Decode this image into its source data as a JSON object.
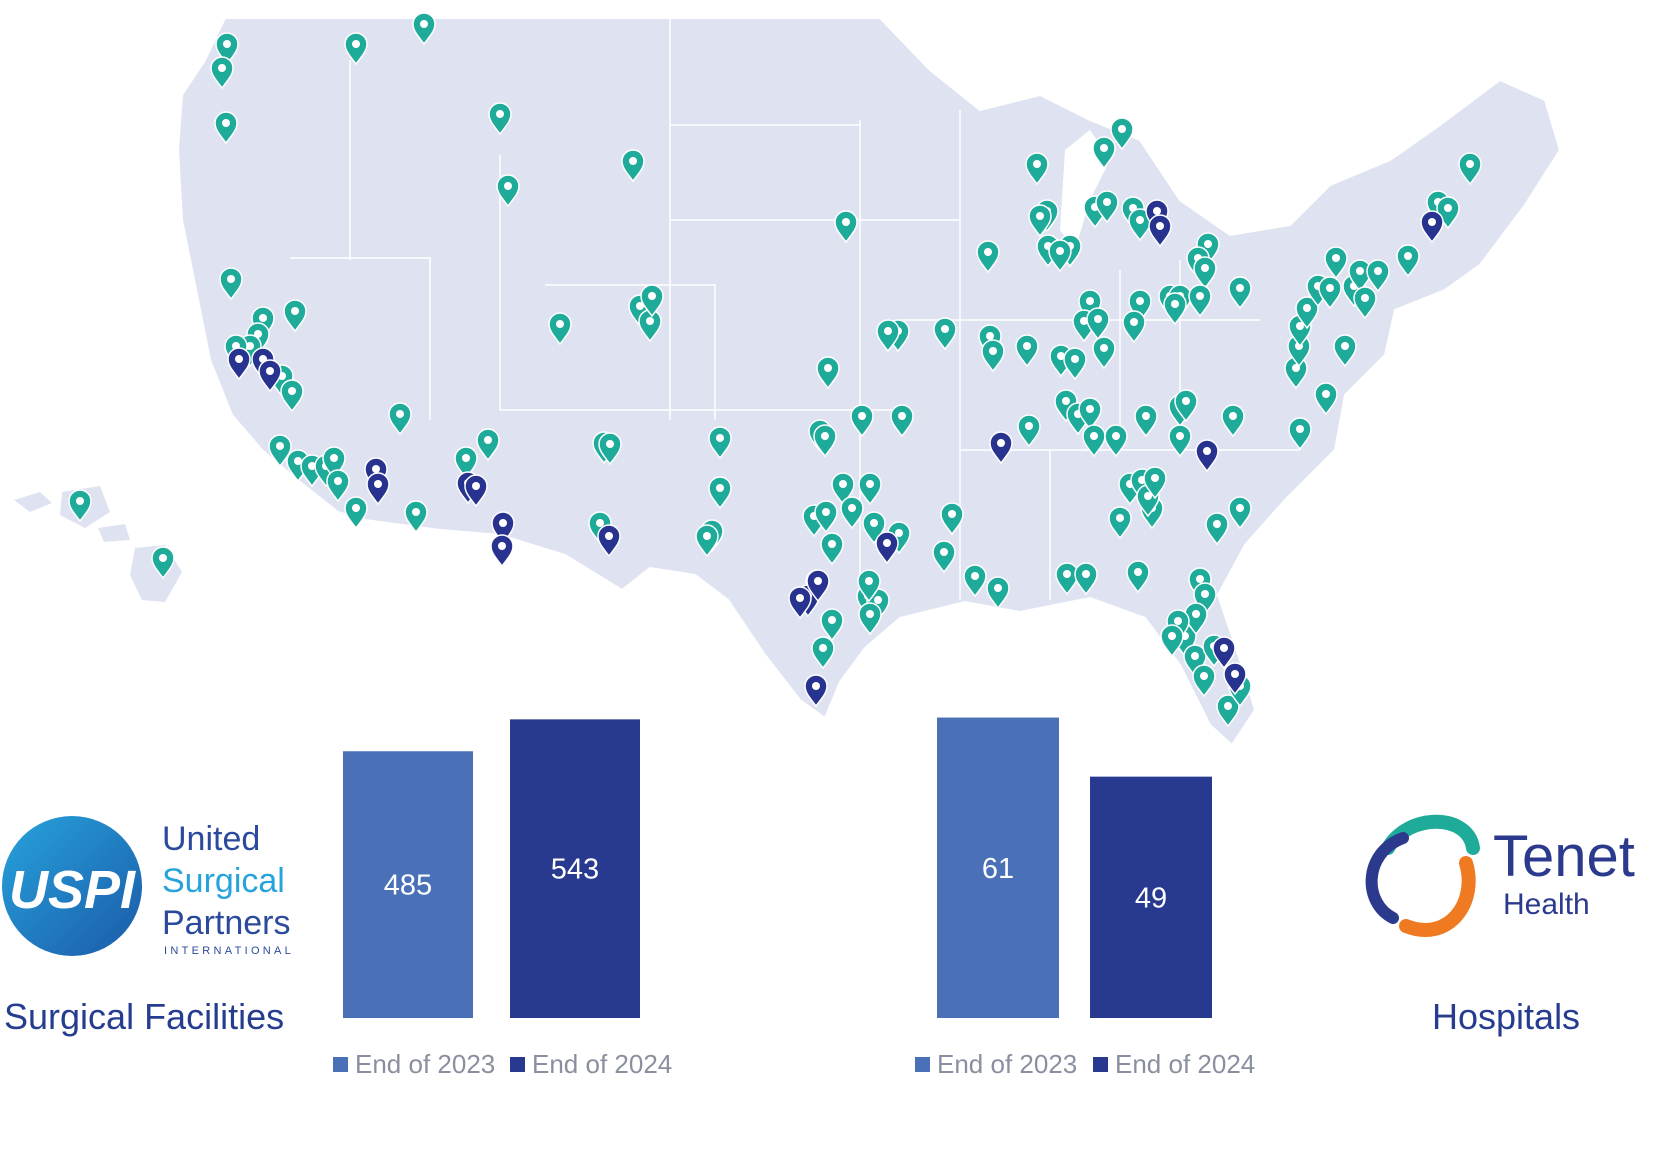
{
  "colors": {
    "map_fill": "#dfe3f1",
    "map_border": "#ffffff",
    "pin_uspi": "#1fab9a",
    "pin_tenet": "#28338f",
    "bar_2023": "#4a70b8",
    "bar_2024": "#283a8f",
    "caption": "#263d8f",
    "tenet_teal": "#1fab9a",
    "tenet_orange": "#f07a22",
    "tenet_navy": "#2b3a8c"
  },
  "map": {
    "pin_types": [
      "uspi-facility-pin-icon",
      "tenet-hospital-pin-icon"
    ]
  },
  "uspi_logo": {
    "line1": "United",
    "line2": "Surgical",
    "line3": "Partners",
    "line4": "INTERNATIONAL",
    "mark": "USPI"
  },
  "tenet_logo": {
    "line1": "Tenet",
    "line2": "Health"
  },
  "captions": {
    "left": "Surgical Facilities",
    "right": "Hospitals"
  },
  "chart_data": [
    {
      "type": "bar",
      "categories": [
        "End of 2023",
        "End of 2024"
      ],
      "values": [
        485,
        543
      ],
      "title": "Surgical Facilities",
      "ylim": [
        0,
        600
      ],
      "colors": [
        "#4a70b8",
        "#283a8f"
      ],
      "legend": [
        "End of 2023",
        "End of 2024"
      ],
      "legend_position": "bottom",
      "grid": false
    },
    {
      "type": "bar",
      "categories": [
        "End of 2023",
        "End of 2024"
      ],
      "values": [
        61,
        49
      ],
      "title": "Hospitals",
      "ylim": [
        0,
        67
      ],
      "colors": [
        "#4a70b8",
        "#283a8f"
      ],
      "legend": [
        "End of 2023",
        "End of 2024"
      ],
      "legend_position": "bottom",
      "grid": false
    }
  ]
}
